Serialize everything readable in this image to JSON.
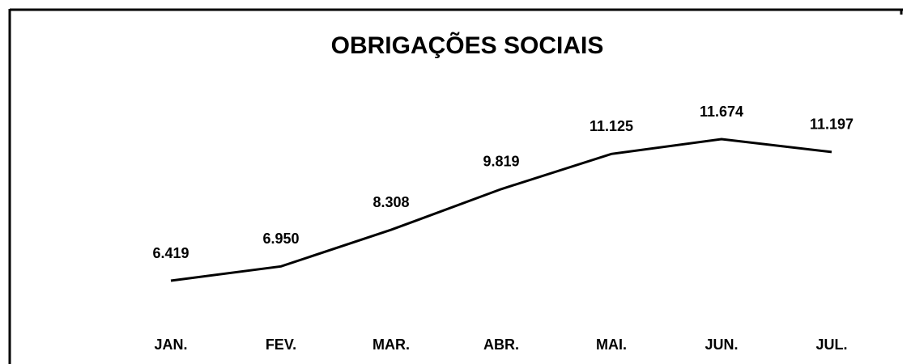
{
  "chart_data": {
    "type": "line",
    "title": "OBRIGAÇÕES SOCIAIS",
    "categories": [
      "JAN.",
      "FEV.",
      "MAR.",
      "ABR.",
      "MAI.",
      "JUN.",
      "JUL."
    ],
    "values": [
      6419,
      6950,
      8308,
      9819,
      11125,
      11674,
      11197
    ],
    "value_labels": [
      "6.419",
      "6.950",
      "8.308",
      "9.819",
      "11.125",
      "11.674",
      "11.197"
    ],
    "color": "#000000"
  }
}
